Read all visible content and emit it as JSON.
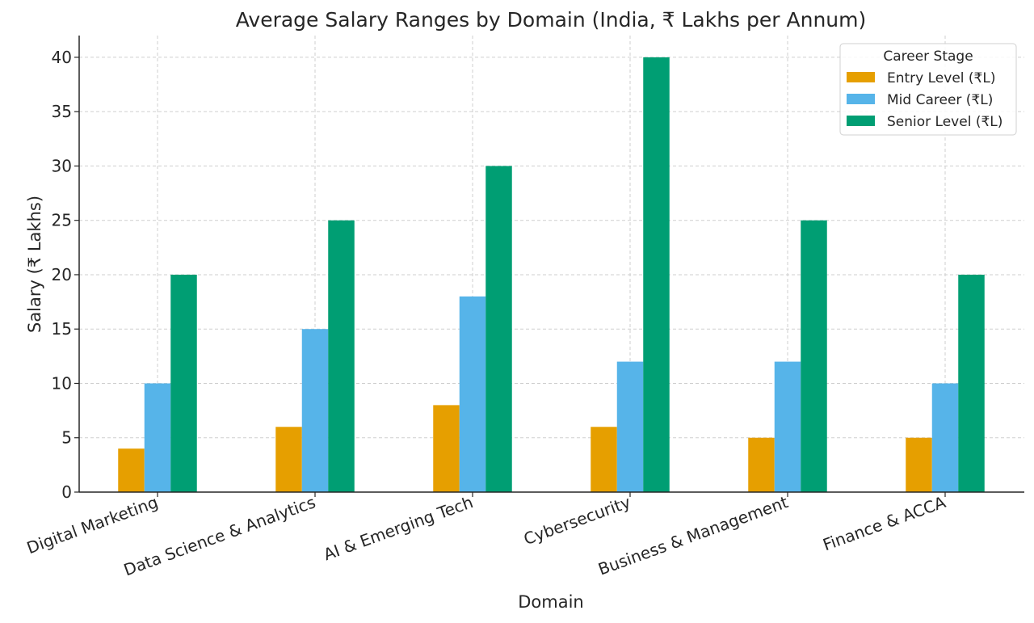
{
  "chart_data": {
    "type": "bar",
    "title": "Average Salary Ranges by Domain (India, ₹ Lakhs per Annum)",
    "xlabel": "Domain",
    "ylabel": "Salary (₹ Lakhs)",
    "ylim": [
      0,
      42
    ],
    "yticks": [
      0,
      5,
      10,
      15,
      20,
      25,
      30,
      35,
      40
    ],
    "grid": true,
    "legend": {
      "title": "Career Stage",
      "placement": "top-right"
    },
    "categories": [
      "Digital Marketing",
      "Data Science & Analytics",
      "AI & Emerging Tech",
      "Cybersecurity",
      "Business & Management",
      "Finance & ACCA"
    ],
    "series": [
      {
        "name": "Entry Level (₹L)",
        "color": "#E69F00",
        "values": [
          4,
          6,
          8,
          6,
          5,
          5
        ]
      },
      {
        "name": "Mid Career (₹L)",
        "color": "#56B4E9",
        "values": [
          10,
          15,
          18,
          12,
          12,
          10
        ]
      },
      {
        "name": "Senior Level (₹L)",
        "color": "#009E73",
        "values": [
          20,
          25,
          30,
          40,
          25,
          20
        ]
      }
    ]
  }
}
